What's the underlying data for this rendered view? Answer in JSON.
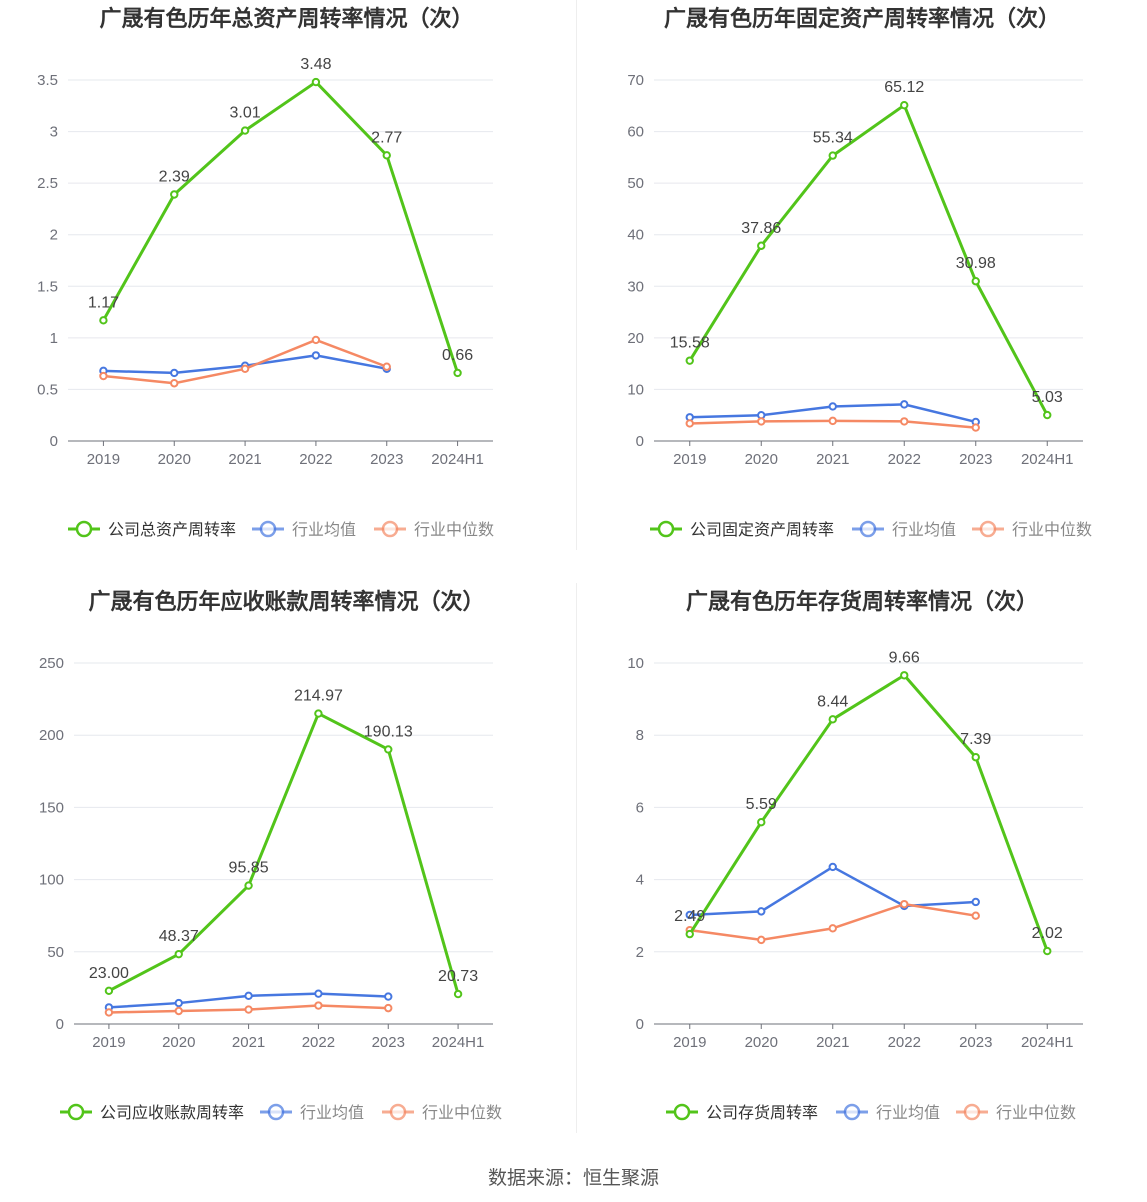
{
  "colors": {
    "company": "#52c41a",
    "avg": "#4677e0",
    "median": "#f58964"
  },
  "source": "数据来源：恒生聚源",
  "chart_data": [
    {
      "type": "line",
      "title": "广晟有色历年总资产周转率情况（次）",
      "categories": [
        "2019",
        "2020",
        "2021",
        "2022",
        "2023",
        "2024H1"
      ],
      "ylim": [
        0,
        3.5
      ],
      "yticks": [
        "0",
        "0.5",
        "1",
        "1.5",
        "2",
        "2.5",
        "3",
        "3.5"
      ],
      "grid": true,
      "legend_position": "bottom",
      "series": [
        {
          "name": "公司总资产周转率",
          "values": [
            1.17,
            2.39,
            3.01,
            3.48,
            2.77,
            0.66
          ],
          "labels": [
            "1.17",
            "2.39",
            "3.01",
            "3.48",
            "2.77",
            "0.66"
          ]
        },
        {
          "name": "行业均值",
          "values": [
            0.68,
            0.66,
            0.73,
            0.83,
            0.7,
            null
          ]
        },
        {
          "name": "行业中位数",
          "values": [
            0.63,
            0.56,
            0.7,
            0.98,
            0.72,
            null
          ]
        }
      ]
    },
    {
      "type": "line",
      "title": "广晟有色历年固定资产周转率情况（次）",
      "categories": [
        "2019",
        "2020",
        "2021",
        "2022",
        "2023",
        "2024H1"
      ],
      "ylim": [
        0,
        70
      ],
      "yticks": [
        "0",
        "10",
        "20",
        "30",
        "40",
        "50",
        "60",
        "70"
      ],
      "grid": true,
      "legend_position": "bottom",
      "series": [
        {
          "name": "公司固定资产周转率",
          "values": [
            15.58,
            37.86,
            55.34,
            65.12,
            30.98,
            5.03
          ],
          "labels": [
            "15.58",
            "37.86",
            "55.34",
            "65.12",
            "30.98",
            "5.03"
          ]
        },
        {
          "name": "行业均值",
          "values": [
            4.6,
            5.0,
            6.7,
            7.1,
            3.7,
            null
          ]
        },
        {
          "name": "行业中位数",
          "values": [
            3.4,
            3.8,
            3.9,
            3.8,
            2.6,
            null
          ]
        }
      ]
    },
    {
      "type": "line",
      "title": "广晟有色历年应收账款周转率情况（次）",
      "categories": [
        "2019",
        "2020",
        "2021",
        "2022",
        "2023",
        "2024H1"
      ],
      "ylim": [
        0,
        250
      ],
      "yticks": [
        "0",
        "50",
        "100",
        "150",
        "200",
        "250"
      ],
      "grid": true,
      "legend_position": "bottom",
      "series": [
        {
          "name": "公司应收账款周转率",
          "values": [
            23.0,
            48.37,
            95.85,
            214.97,
            190.13,
            20.73
          ],
          "labels": [
            "23.00",
            "48.37",
            "95.85",
            "214.97",
            "190.13",
            "20.73"
          ]
        },
        {
          "name": "行业均值",
          "values": [
            11.5,
            14.5,
            19.5,
            21.0,
            19.0,
            null
          ]
        },
        {
          "name": "行业中位数",
          "values": [
            8.0,
            9.0,
            10.0,
            12.8,
            11.0,
            null
          ]
        }
      ]
    },
    {
      "type": "line",
      "title": "广晟有色历年存货周转率情况（次）",
      "categories": [
        "2019",
        "2020",
        "2021",
        "2022",
        "2023",
        "2024H1"
      ],
      "ylim": [
        0,
        10
      ],
      "yticks": [
        "0",
        "2",
        "4",
        "6",
        "8",
        "10"
      ],
      "grid": true,
      "legend_position": "bottom",
      "series": [
        {
          "name": "公司存货周转率",
          "values": [
            2.49,
            5.59,
            8.44,
            9.66,
            7.39,
            2.02
          ],
          "labels": [
            "2.49",
            "5.59",
            "8.44",
            "9.66",
            "7.39",
            "2.02"
          ]
        },
        {
          "name": "行业均值",
          "values": [
            3.02,
            3.12,
            4.35,
            3.27,
            3.38,
            null
          ]
        },
        {
          "name": "行业中位数",
          "values": [
            2.6,
            2.33,
            2.65,
            3.32,
            3.0,
            null
          ]
        }
      ]
    }
  ]
}
